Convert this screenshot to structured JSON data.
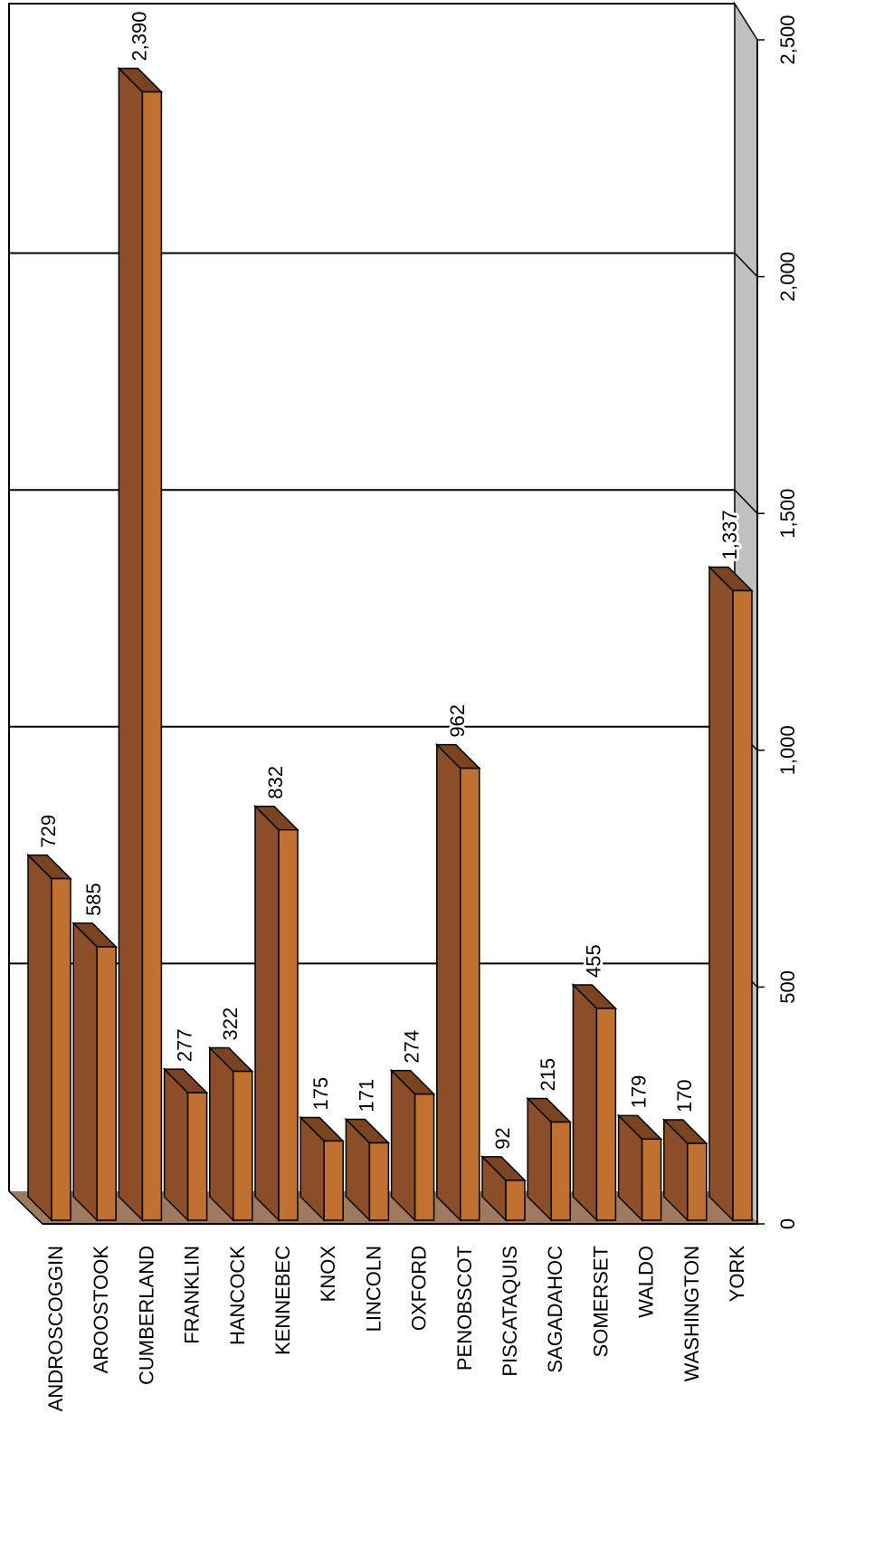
{
  "chart_data": {
    "type": "bar",
    "orientation": "rotated",
    "style": "3d",
    "title": "",
    "xlabel": "",
    "ylabel": "",
    "categories": [
      "ANDROSCOGGIN",
      "AROOSTOOK",
      "CUMBERLAND",
      "FRANKLIN",
      "HANCOCK",
      "KENNEBEC",
      "KNOX",
      "LINCOLN",
      "OXFORD",
      "PENOBSCOT",
      "PISCATAQUIS",
      "SAGADAHOC",
      "SOMERSET",
      "WALDO",
      "WASHINGTON",
      "YORK"
    ],
    "values": [
      729,
      585,
      2390,
      277,
      322,
      832,
      175,
      171,
      274,
      962,
      92,
      215,
      455,
      179,
      170,
      1337
    ],
    "value_labels": [
      "729",
      "585",
      "2,390",
      "277",
      "322",
      "832",
      "175",
      "171",
      "274",
      "962",
      "92",
      "215",
      "455",
      "179",
      "170",
      "1,337"
    ],
    "ylim": [
      0,
      2500
    ],
    "ticks": [
      0,
      500,
      1000,
      1500,
      2000,
      2500
    ],
    "tick_labels": [
      "0",
      "500",
      "1,000",
      "1,500",
      "2,000",
      "2,500"
    ],
    "grid": true,
    "legend": "none",
    "colors": {
      "bar_front": "#c07030",
      "bar_side": "#8b4e28",
      "bar_top": "#7a4420",
      "floor": "#a07a5e",
      "side_wall": "#c0c0c0",
      "outline": "#000000"
    }
  }
}
